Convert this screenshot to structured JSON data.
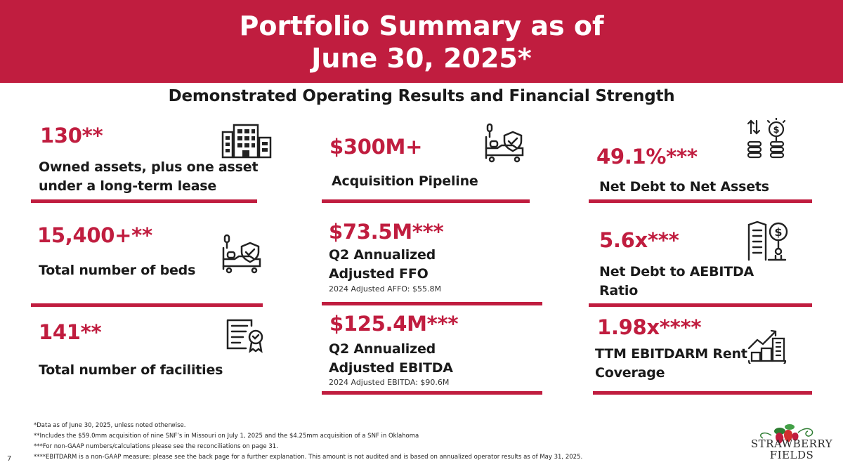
{
  "header": {
    "title_line1": "Portfolio Summary as of",
    "title_line2": "June 30, 2025*"
  },
  "subtitle": "Demonstrated Operating Results and Financial Strength",
  "colors": {
    "accent": "#c01d3f",
    "text": "#1a1a1a",
    "background": "#ffffff"
  },
  "cards": {
    "assets": {
      "value": "130**",
      "label_line1": "Owned assets, plus one asset",
      "label_line2": "under a long-term lease",
      "icon": "office-building-icon"
    },
    "pipeline": {
      "value": "$300M+",
      "label": "Acquisition Pipeline",
      "icon": "hospital-bed-shield-icon"
    },
    "net_debt_assets": {
      "value": "49.1%***",
      "label": "Net Debt to Net Assets",
      "icon": "money-growth-icon"
    },
    "beds": {
      "value": "15,400+**",
      "label": "Total number of beds",
      "icon": "hospital-bed-shield-icon"
    },
    "ffo": {
      "value": "$73.5M***",
      "label_line1": "Q2 Annualized",
      "label_line2": "Adjusted FFO",
      "note": "2024 Adjusted AFFO: $55.8M"
    },
    "net_debt_ebitda": {
      "value": "5.6x***",
      "label_line1": "Net Debt to AEBITDA",
      "label_line2": "Ratio",
      "icon": "city-dollar-icon"
    },
    "facilities": {
      "value": "141**",
      "label": "Total number of facilities",
      "icon": "certificate-icon"
    },
    "ebitda": {
      "value": "$125.4M***",
      "label_line1": "Q2 Annualized",
      "label_line2": "Adjusted EBITDA",
      "note": "2024 Adjusted EBITDA: $90.6M"
    },
    "rent_coverage": {
      "value": "1.98x****",
      "label_line1": "TTM EBITDARM Rent",
      "label_line2": "Coverage",
      "icon": "growth-city-icon"
    }
  },
  "footnotes": [
    "*Data as of June 30, 2025, unless noted otherwise.",
    "**Includes the $59.0mm acquisition of nine SNF’s  in Missouri on July  1, 2025 and the $4.25mm acquisition of a SNF in Oklahoma",
    "***For non-GAAP numbers/calculations please see the reconciliations on page 31.",
    "****EBITDARM is a non-GAAP measure; please see the back page for a further explanation. This amount is not audited and is based on annualized operator results as of May 31, 2025."
  ],
  "page_number": "7",
  "logo": {
    "line1": "STRAWBERRY",
    "line2": "FIELDS"
  }
}
